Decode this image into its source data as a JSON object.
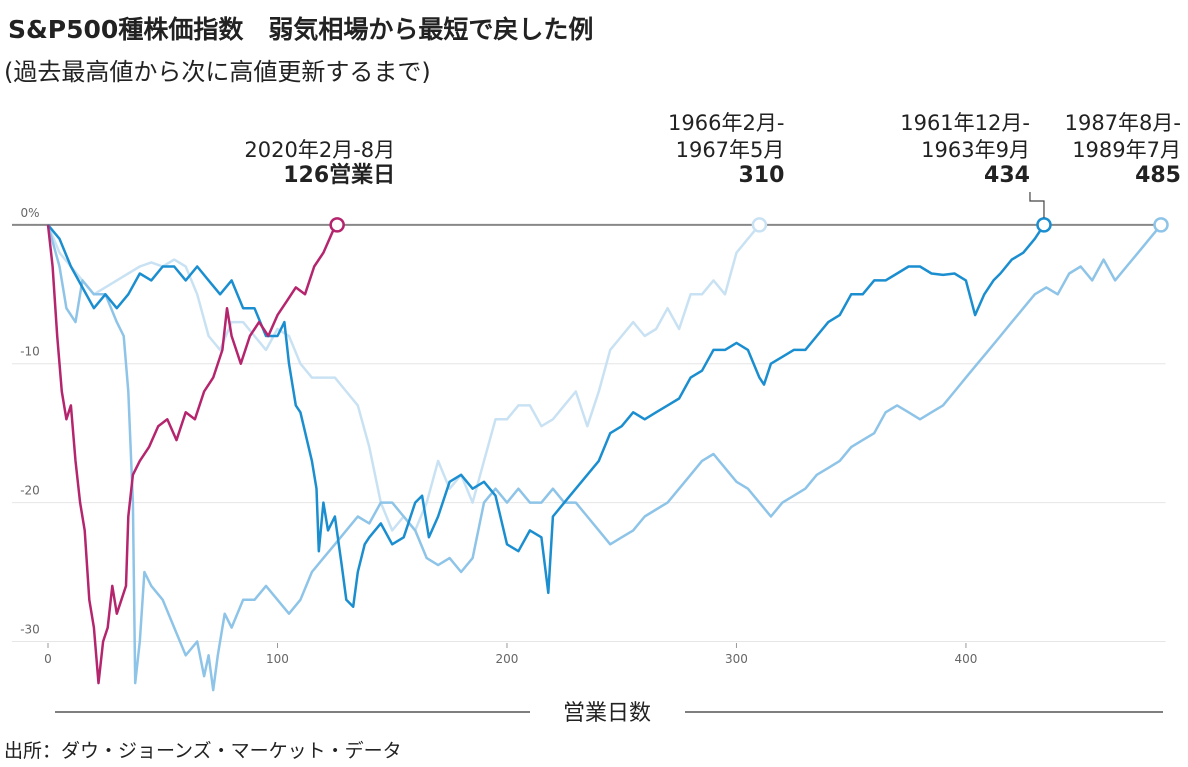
{
  "chart_data": {
    "type": "line",
    "title": "S&P500種株価指数　弱気相場から最短で戻した例",
    "subtitle": "(過去最高値から次に高値更新するまで)",
    "x_label": "営業日数",
    "source": "出所：ダウ・ジョーンズ・マーケット・データ",
    "xlim": [
      0,
      487
    ],
    "ylim": [
      -34,
      1
    ],
    "xticks": [
      0,
      100,
      200,
      300,
      400
    ],
    "yticks": [
      {
        "value": 0,
        "label": "0%"
      },
      -10,
      -20,
      -30
    ],
    "grid": true,
    "series": [
      {
        "color": "#c9e2f3",
        "annotation": {
          "period": [
            "1966年2月-",
            "1967年5月"
          ],
          "days": "310"
        },
        "x": [
          0,
          5,
          10,
          20,
          30,
          40,
          45,
          50,
          55,
          60,
          65,
          70,
          75,
          80,
          85,
          90,
          95,
          100,
          105,
          110,
          115,
          120,
          125,
          130,
          135,
          140,
          145,
          150,
          155,
          160,
          165,
          170,
          175,
          180,
          185,
          190,
          195,
          200,
          205,
          210,
          215,
          220,
          225,
          230,
          235,
          240,
          245,
          250,
          255,
          260,
          265,
          270,
          275,
          280,
          285,
          290,
          295,
          300,
          305,
          310
        ],
        "values": [
          0,
          -2,
          -3,
          -5,
          -4,
          -3,
          -2.7,
          -3,
          -2.5,
          -3,
          -5,
          -8,
          -9,
          -7,
          -7,
          -8,
          -9,
          -7.5,
          -8,
          -10,
          -11,
          -11,
          -11,
          -12,
          -13,
          -16,
          -20,
          -22,
          -21,
          -22,
          -20,
          -17,
          -19,
          -18,
          -20,
          -17,
          -14,
          -14,
          -13,
          -13,
          -14.5,
          -14,
          -13,
          -12,
          -14.5,
          -12,
          -9,
          -8,
          -7,
          -8,
          -7.5,
          -6,
          -7.5,
          -5,
          -5,
          -4,
          -5,
          -2,
          -1,
          0
        ]
      },
      {
        "color": "#8ec4e8",
        "annotation": {
          "period": [
            "1987年8月-",
            "1989年7月"
          ],
          "days": "485"
        },
        "x": [
          0,
          5,
          8,
          12,
          15,
          20,
          25,
          30,
          33,
          35,
          37,
          38,
          40,
          42,
          45,
          50,
          55,
          60,
          65,
          68,
          70,
          72,
          74,
          77,
          80,
          85,
          90,
          95,
          100,
          105,
          110,
          115,
          120,
          125,
          130,
          135,
          140,
          145,
          150,
          155,
          160,
          165,
          170,
          175,
          180,
          185,
          190,
          195,
          200,
          205,
          210,
          215,
          220,
          225,
          230,
          235,
          240,
          245,
          250,
          255,
          260,
          265,
          270,
          275,
          280,
          285,
          290,
          295,
          300,
          305,
          310,
          315,
          320,
          325,
          330,
          335,
          340,
          345,
          350,
          355,
          360,
          365,
          370,
          375,
          380,
          385,
          390,
          395,
          400,
          405,
          410,
          415,
          420,
          425,
          430,
          435,
          440,
          445,
          450,
          455,
          460,
          465,
          470,
          475,
          480,
          485
        ],
        "values": [
          0,
          -3,
          -6,
          -7,
          -4,
          -5,
          -5,
          -7,
          -8,
          -12,
          -20,
          -33,
          -30,
          -25,
          -26,
          -27,
          -29,
          -31,
          -30,
          -32.5,
          -31,
          -33.5,
          -31,
          -28,
          -29,
          -27,
          -27,
          -26,
          -27,
          -28,
          -27,
          -25,
          -24,
          -23,
          -22,
          -21,
          -21.5,
          -20,
          -20,
          -21,
          -22,
          -24,
          -24.5,
          -24,
          -25,
          -24,
          -20,
          -19,
          -20,
          -19,
          -20,
          -20,
          -19,
          -20,
          -20,
          -21,
          -22,
          -23,
          -22.5,
          -22,
          -21,
          -20.5,
          -20,
          -19,
          -18,
          -17,
          -16.5,
          -17.5,
          -18.5,
          -19,
          -20,
          -21,
          -20,
          -19.5,
          -19,
          -18,
          -17.5,
          -17,
          -16,
          -15.5,
          -15,
          -13.5,
          -13,
          -13.5,
          -14,
          -13.5,
          -13,
          -12,
          -11,
          -10,
          -9,
          -8,
          -7,
          -6,
          -5,
          -4.5,
          -5,
          -3.5,
          -3,
          -4,
          -2.5,
          -4,
          -3,
          -2,
          -1,
          0
        ]
      },
      {
        "color": "#1b8ed0",
        "annotation": {
          "period": [
            "1961年12月-",
            "1963年9月"
          ],
          "days": "434"
        },
        "x": [
          0,
          5,
          10,
          15,
          20,
          25,
          30,
          35,
          40,
          45,
          50,
          55,
          60,
          65,
          70,
          75,
          80,
          85,
          90,
          95,
          100,
          103,
          105,
          108,
          110,
          115,
          117,
          118,
          120,
          122,
          125,
          128,
          130,
          133,
          135,
          138,
          140,
          145,
          150,
          155,
          160,
          163,
          166,
          170,
          175,
          180,
          185,
          190,
          195,
          200,
          205,
          210,
          215,
          218,
          220,
          225,
          230,
          235,
          240,
          245,
          250,
          255,
          260,
          265,
          270,
          275,
          280,
          285,
          290,
          295,
          300,
          305,
          310,
          312,
          315,
          320,
          325,
          330,
          335,
          340,
          345,
          350,
          355,
          360,
          365,
          370,
          375,
          380,
          385,
          390,
          395,
          400,
          404,
          408,
          412,
          415,
          420,
          425,
          430,
          434
        ],
        "values": [
          0,
          -1,
          -3,
          -4.5,
          -6,
          -5,
          -6,
          -5,
          -3.5,
          -4,
          -3,
          -3,
          -4,
          -3,
          -4,
          -5,
          -4,
          -6,
          -6,
          -8,
          -8,
          -7,
          -10,
          -13,
          -13.5,
          -17,
          -19,
          -23.5,
          -20,
          -22,
          -21,
          -24.5,
          -27,
          -27.5,
          -25,
          -23,
          -22.5,
          -21.5,
          -23,
          -22.5,
          -20,
          -19.5,
          -22.5,
          -21,
          -18.5,
          -18,
          -19,
          -18.5,
          -19.5,
          -23,
          -23.5,
          -22,
          -22.5,
          -26.5,
          -21,
          -20,
          -19,
          -18,
          -17,
          -15,
          -14.5,
          -13.5,
          -14,
          -13.5,
          -13,
          -12.5,
          -11,
          -10.5,
          -9,
          -9,
          -8.5,
          -9,
          -11,
          -11.5,
          -10,
          -9.5,
          -9,
          -9,
          -8,
          -7,
          -6.5,
          -5,
          -5,
          -4,
          -4,
          -3.5,
          -3,
          -3,
          -3.5,
          -3.6,
          -3.5,
          -4,
          -6.5,
          -5,
          -4,
          -3.5,
          -2.5,
          -2,
          -1,
          0
        ]
      },
      {
        "color": "#b5256e",
        "annotation": {
          "period": [
            "2020年2月-8月"
          ],
          "days": "126営業日"
        },
        "x": [
          0,
          2,
          4,
          6,
          8,
          10,
          12,
          14,
          16,
          18,
          20,
          22,
          24,
          26,
          28,
          30,
          32,
          34,
          35,
          37,
          40,
          44,
          48,
          52,
          56,
          60,
          64,
          68,
          72,
          76,
          78,
          80,
          84,
          88,
          92,
          96,
          100,
          104,
          108,
          112,
          116,
          120,
          124,
          126
        ],
        "values": [
          0,
          -3,
          -8,
          -12,
          -14,
          -13,
          -17,
          -20,
          -22,
          -27,
          -29,
          -33,
          -30,
          -29,
          -26,
          -28,
          -27,
          -26,
          -21,
          -18,
          -17,
          -16,
          -14.5,
          -14,
          -15.5,
          -13.5,
          -14,
          -12,
          -11,
          -9,
          -6,
          -8,
          -10,
          -8,
          -7,
          -8,
          -6.5,
          -5.5,
          -4.5,
          -5,
          -3,
          -2,
          -0.5,
          0
        ]
      }
    ]
  }
}
